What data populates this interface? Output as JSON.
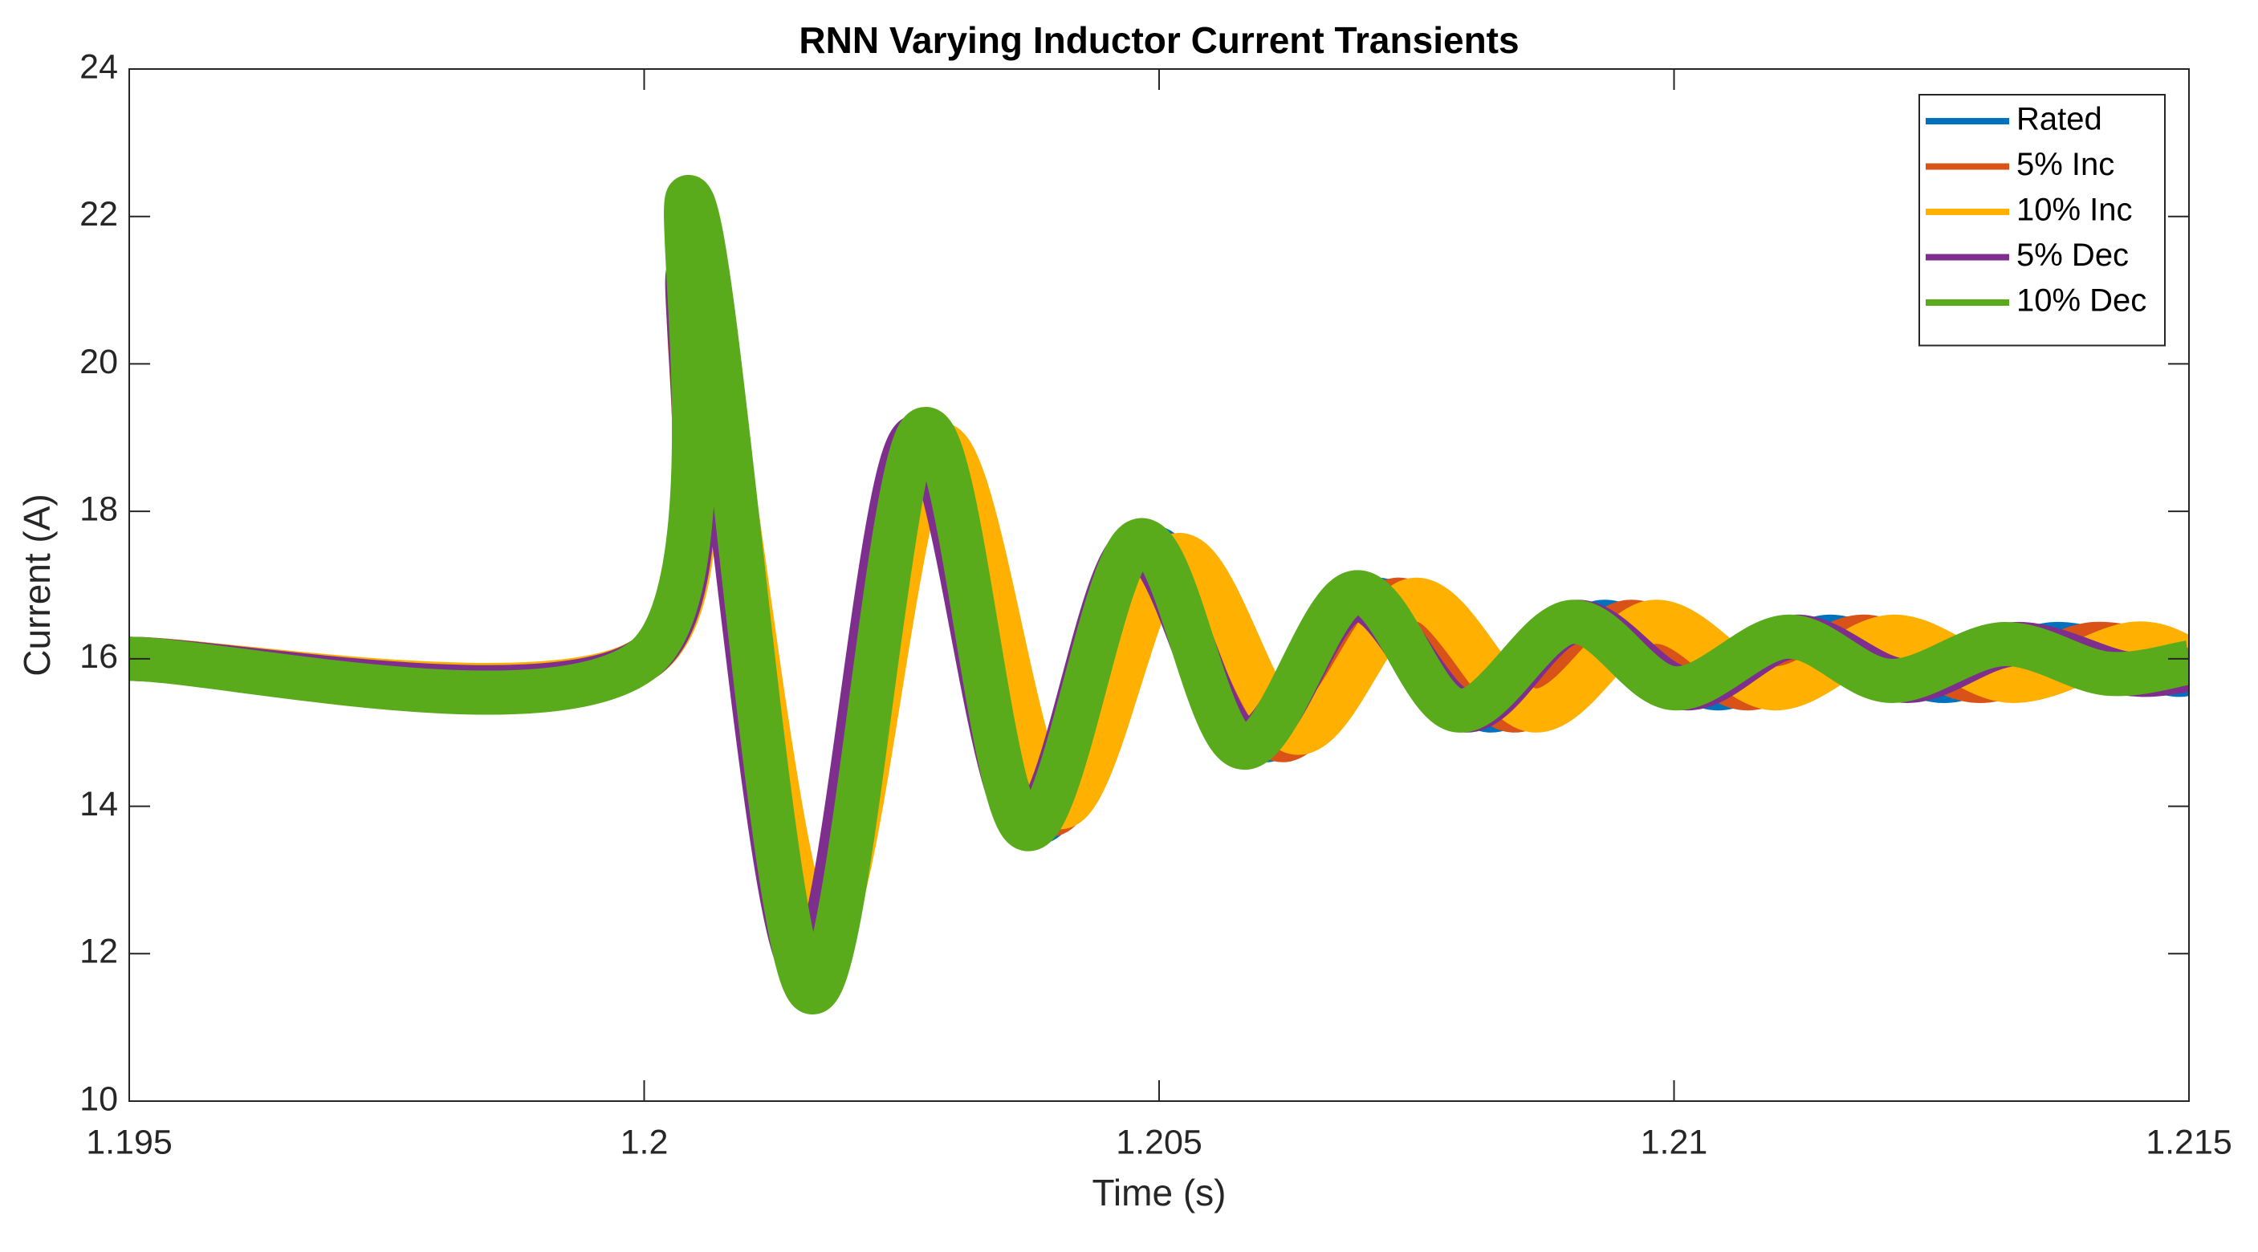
{
  "chart_data": {
    "type": "line",
    "title": "RNN Varying Inductor Current Transients",
    "x_label": "Time (s)",
    "y_label": "Current (A)",
    "xlim": [
      1.195,
      1.215
    ],
    "ylim": [
      10,
      24
    ],
    "xticks": [
      1.195,
      1.2,
      1.205,
      1.21,
      1.215
    ],
    "yticks": [
      10,
      12,
      14,
      16,
      18,
      20,
      22,
      24
    ],
    "legend": "top-right",
    "series": [
      {
        "name": "Rated",
        "color": "#0072bd",
        "x": [
          1.195,
          1.2,
          1.2005,
          1.2016,
          1.2027,
          1.2038,
          1.2049,
          1.206,
          1.2071,
          1.2082,
          1.2093,
          1.2104,
          1.2115,
          1.2126,
          1.2137,
          1.2148,
          1.215
        ],
        "values": [
          16,
          16,
          21.0,
          12.0,
          19.0,
          13.8,
          17.5,
          14.9,
          16.8,
          15.3,
          16.5,
          15.6,
          16.3,
          15.7,
          16.2,
          15.8,
          15.85
        ]
      },
      {
        "name": "5% Inc",
        "color": "#d95319",
        "x": [
          1.195,
          1.2,
          1.2005,
          1.20165,
          1.20278,
          1.20391,
          1.20504,
          1.20617,
          1.2073,
          1.20843,
          1.20956,
          1.21069,
          1.21182,
          1.21295,
          1.21408,
          1.215
        ],
        "values": [
          16,
          16,
          20.9,
          12.1,
          18.9,
          13.9,
          17.4,
          14.9,
          16.8,
          15.3,
          16.5,
          15.6,
          16.3,
          15.7,
          16.2,
          15.9
        ]
      },
      {
        "name": "10% Inc",
        "color": "#ffb000",
        "x": [
          1.195,
          1.2,
          1.20052,
          1.20168,
          1.20284,
          1.204,
          1.20516,
          1.20632,
          1.20748,
          1.20864,
          1.2098,
          1.21096,
          1.21212,
          1.21328,
          1.21444,
          1.215
        ],
        "values": [
          16,
          16,
          20.8,
          12.2,
          18.9,
          14.0,
          17.4,
          15.0,
          16.8,
          15.3,
          16.5,
          15.6,
          16.3,
          15.7,
          16.2,
          16.0
        ]
      },
      {
        "name": "5% Dec",
        "color": "#7e2f8e",
        "x": [
          1.195,
          1.2,
          1.20048,
          1.20155,
          1.20262,
          1.20369,
          1.20476,
          1.20583,
          1.2069,
          1.20797,
          1.20904,
          1.21011,
          1.21118,
          1.21225,
          1.21332,
          1.21439,
          1.215
        ],
        "values": [
          16,
          16,
          21.2,
          11.8,
          19.0,
          13.8,
          17.5,
          14.9,
          16.8,
          15.3,
          16.5,
          15.6,
          16.3,
          15.7,
          16.2,
          15.8,
          15.85
        ]
      },
      {
        "name": "10% Dec",
        "color": "#5aab1c",
        "x": [
          1.195,
          1.2,
          1.20047,
          1.2016,
          1.2027,
          1.2037,
          1.2048,
          1.2058,
          1.2069,
          1.2079,
          1.209,
          1.21,
          1.2111,
          1.2121,
          1.2132,
          1.2142,
          1.215
        ],
        "values": [
          16,
          16,
          22.2,
          11.5,
          19.1,
          13.7,
          17.6,
          14.8,
          16.9,
          15.3,
          16.5,
          15.6,
          16.3,
          15.7,
          16.2,
          15.8,
          15.95
        ]
      }
    ]
  }
}
